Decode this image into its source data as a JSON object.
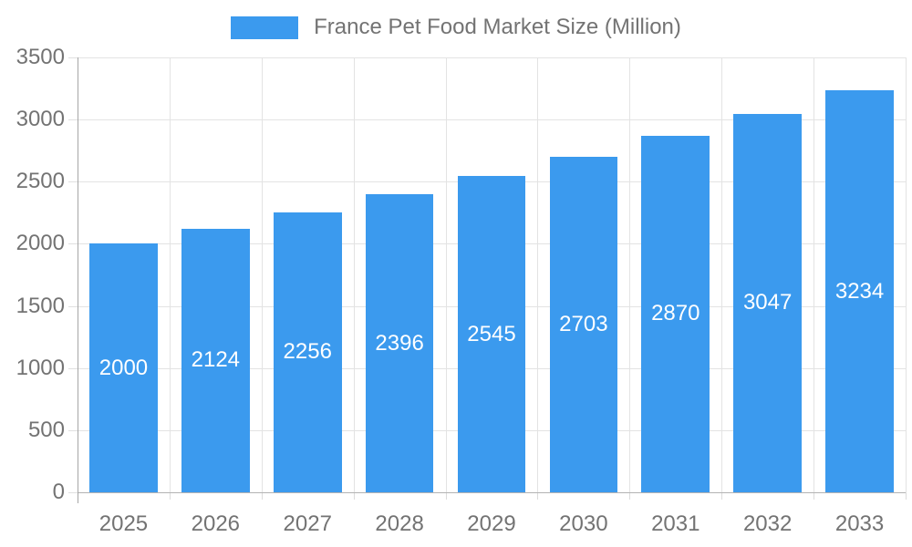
{
  "legend": {
    "label": "France Pet Food Market Size (Million)"
  },
  "chart_data": {
    "type": "bar",
    "title": "France Pet Food Market Size (Million)",
    "series_name": "France Pet Food Market Size (Million)",
    "categories": [
      "2025",
      "2026",
      "2027",
      "2028",
      "2029",
      "2030",
      "2031",
      "2032",
      "2033"
    ],
    "values": [
      2000,
      2124,
      2256,
      2396,
      2545,
      2703,
      2870,
      3047,
      3234
    ],
    "value_labels_inside_bars": true,
    "xlabel": "",
    "ylabel": "",
    "ylim": [
      0,
      3500
    ],
    "yticks": [
      0,
      500,
      1000,
      1500,
      2000,
      2500,
      3000,
      3500
    ],
    "grid": true,
    "legend_position": "top",
    "colors": {
      "bar": "#3B9AEE",
      "grid": "#E3E3E3",
      "axis_line": "#ACACAC",
      "tick_text": "#737373",
      "value_label_text": "#FFFFFF"
    }
  }
}
